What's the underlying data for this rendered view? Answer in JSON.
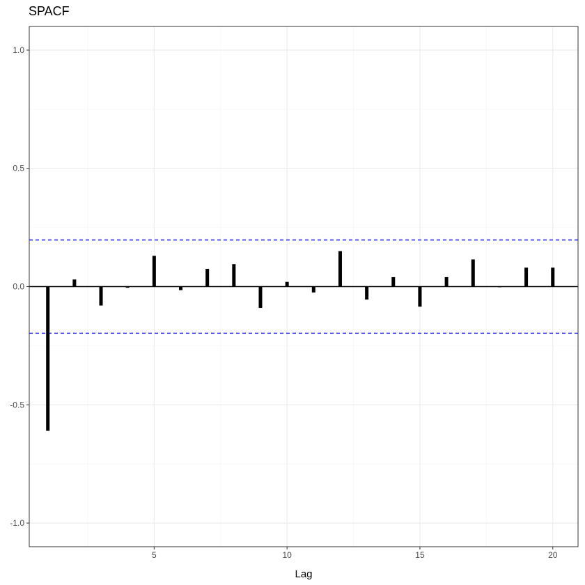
{
  "chart_data": {
    "type": "bar",
    "title": "SPACF",
    "xlabel": "Lag",
    "ylabel": "",
    "x": [
      1,
      2,
      3,
      4,
      5,
      6,
      7,
      8,
      9,
      10,
      11,
      12,
      13,
      14,
      15,
      16,
      17,
      18,
      19,
      20
    ],
    "values": [
      -0.61,
      0.03,
      -0.08,
      -0.005,
      0.13,
      -0.015,
      0.075,
      0.095,
      -0.09,
      0.02,
      -0.025,
      0.15,
      -0.055,
      0.04,
      -0.085,
      0.04,
      0.115,
      0.0,
      0.08,
      0.08
    ],
    "xlim": [
      0.3,
      20.95
    ],
    "ylim": [
      -1.1,
      1.1
    ],
    "xticks": [
      5,
      10,
      15,
      20
    ],
    "xtick_labels": [
      "5",
      "10",
      "15",
      "20"
    ],
    "yticks": [
      -1.0,
      -0.5,
      0.0,
      0.5,
      1.0
    ],
    "ytick_labels": [
      "-1.0",
      "-0.5",
      "0.0",
      "0.5",
      "1.0"
    ],
    "confidence_bounds": [
      0.197,
      -0.197
    ],
    "grid": true,
    "colors": {
      "bars": "#000000",
      "confidence": "#0000ff",
      "zero_line": "#000000"
    }
  }
}
